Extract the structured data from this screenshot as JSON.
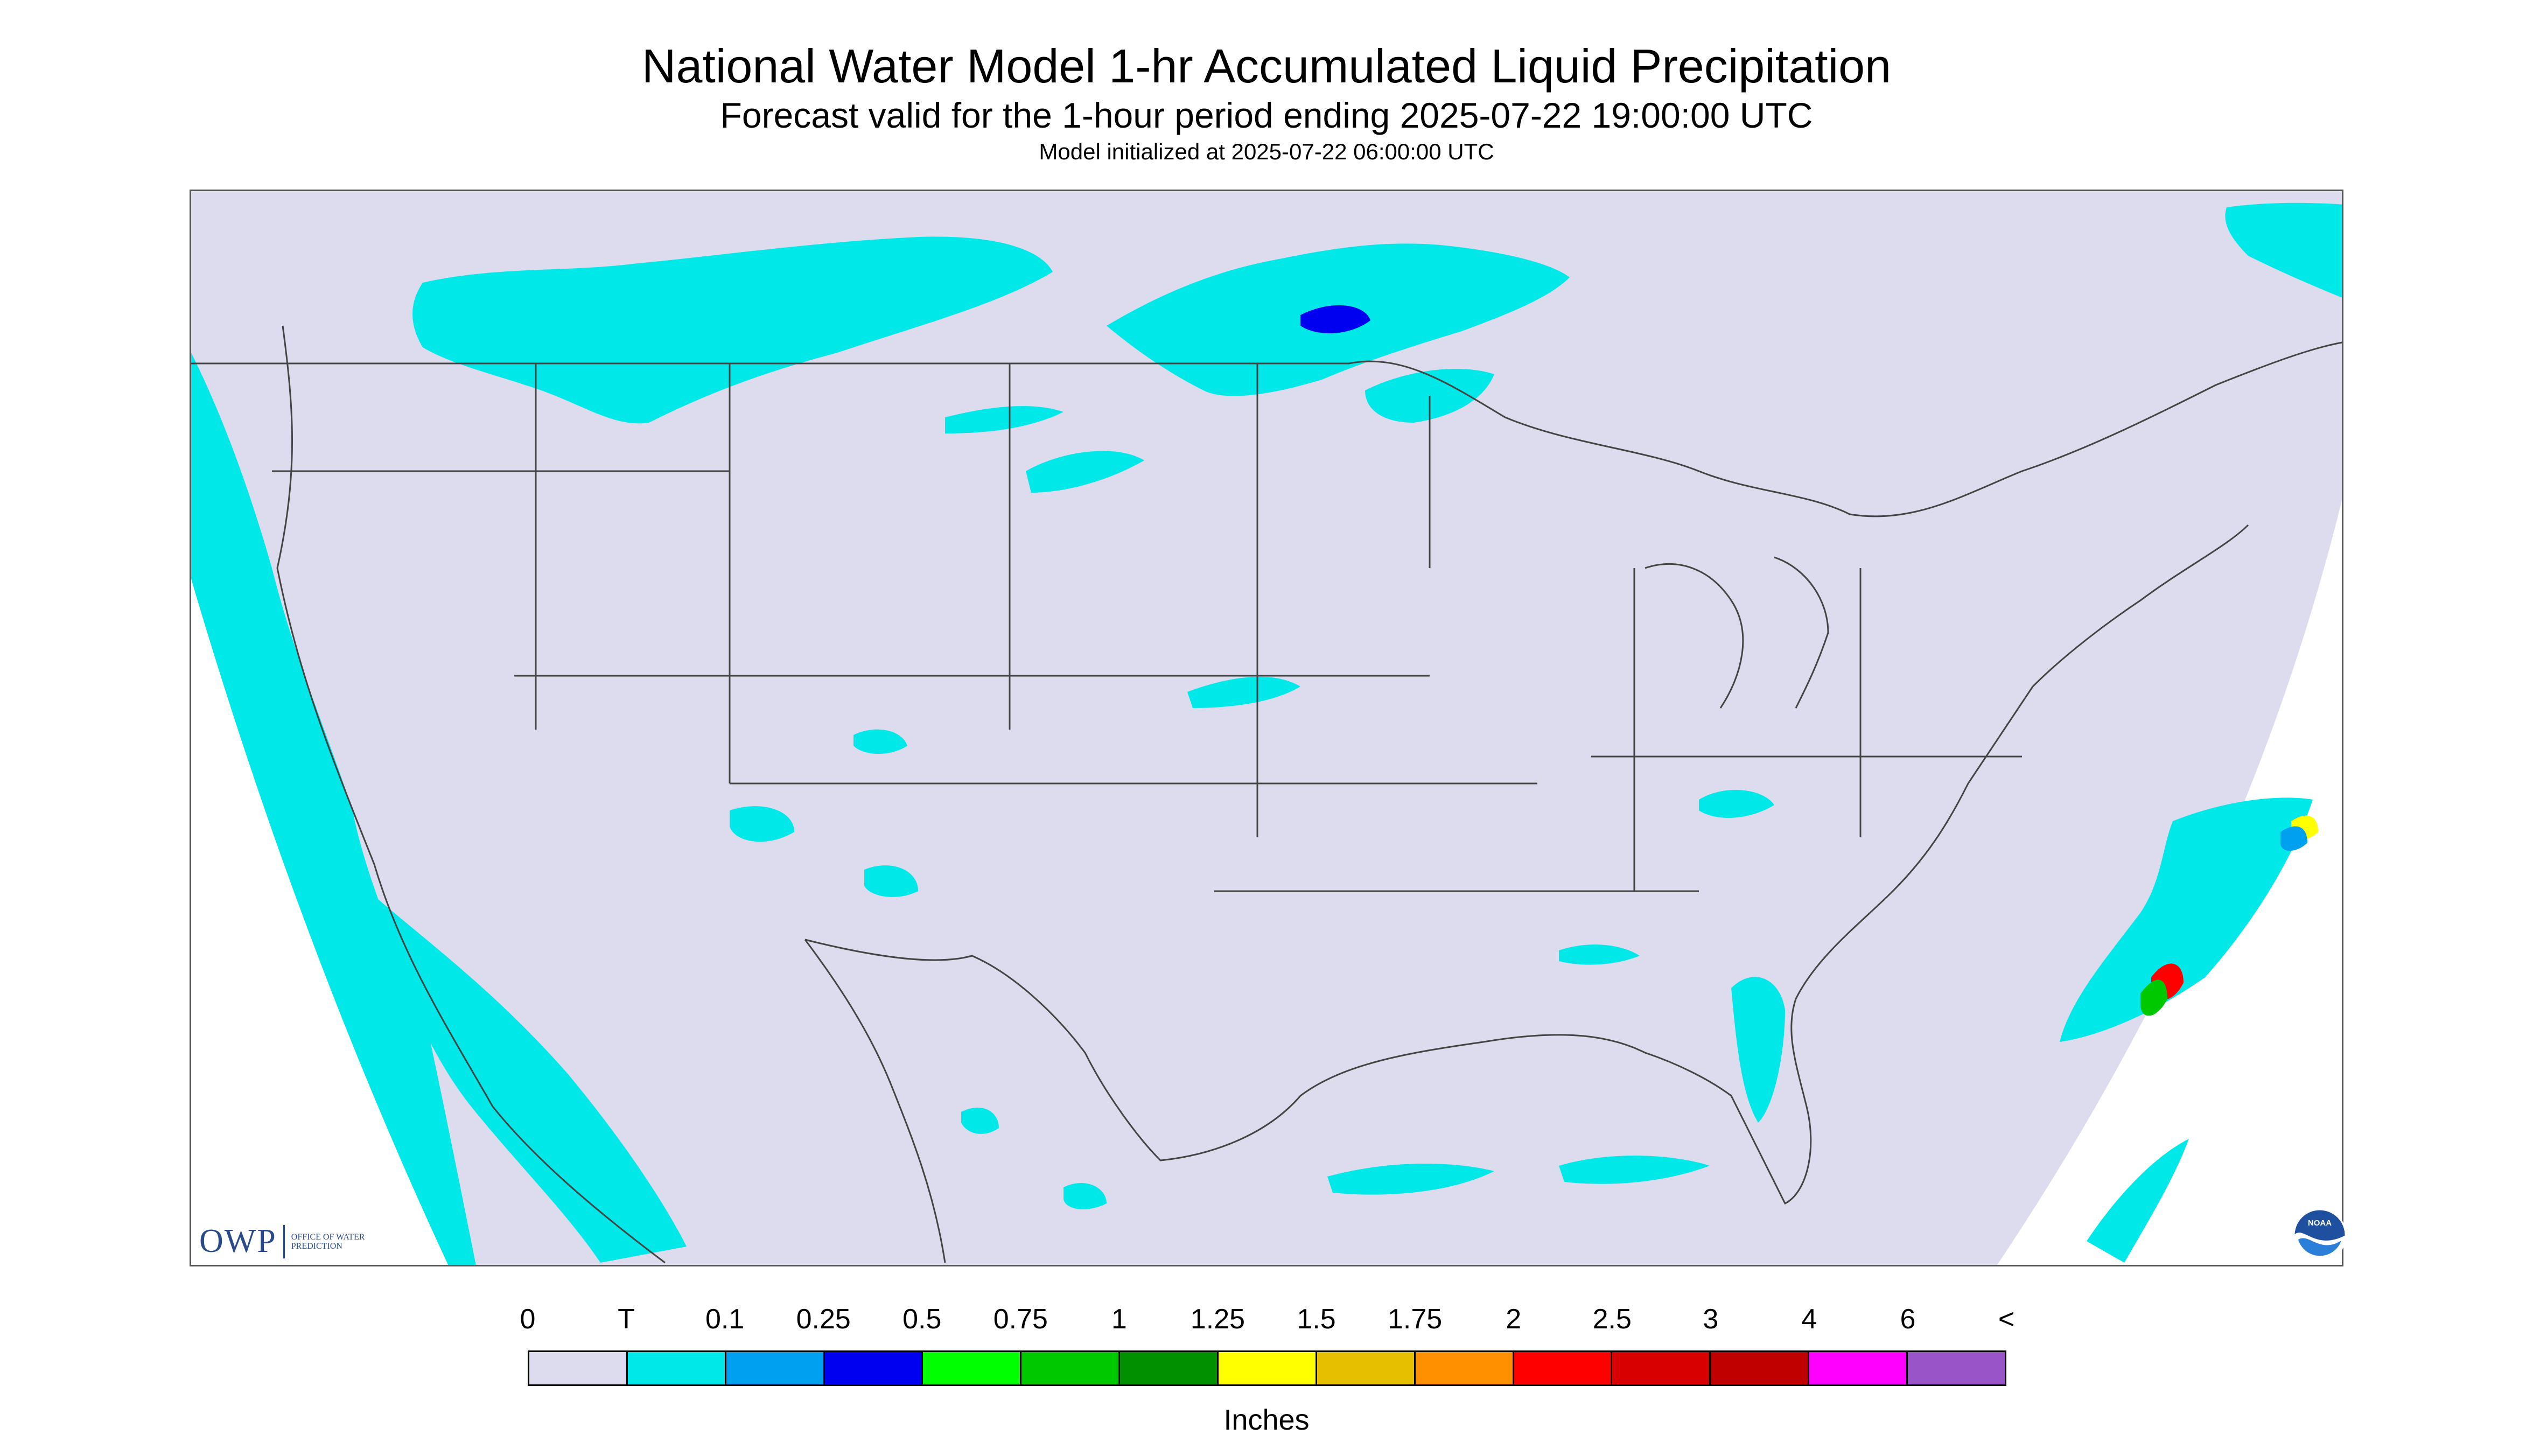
{
  "header": {
    "title": "National Water Model 1-hr Accumulated Liquid Precipitation",
    "subtitle": "Forecast valid for the 1-hour period ending 2025-07-22 19:00:00 UTC",
    "init_line": "Model initialized at 2025-07-22 06:00:00 UTC"
  },
  "legend": {
    "tick_labels": [
      "0",
      "T",
      "0.1",
      "0.25",
      "0.5",
      "0.75",
      "1",
      "1.25",
      "1.5",
      "1.75",
      "2",
      "2.5",
      "3",
      "4",
      "6",
      "<"
    ],
    "colors": [
      "#dcdcee",
      "#00e8e8",
      "#00a0f0",
      "#0000f0",
      "#00ff00",
      "#00c800",
      "#009000",
      "#ffff00",
      "#e6c000",
      "#ff9000",
      "#ff0000",
      "#d80000",
      "#c00000",
      "#ff00ff",
      "#9955c8"
    ],
    "units": "Inches"
  },
  "map": {
    "background_color": "#ffffff",
    "domain_color": "#dcdcee",
    "border_color": "#444444",
    "precip_light_color": "#00e8e8"
  },
  "logos": {
    "owp_mark": "OWP",
    "owp_text": "OFFICE OF WATER PREDICTION",
    "noaa_text": "NOAA"
  }
}
